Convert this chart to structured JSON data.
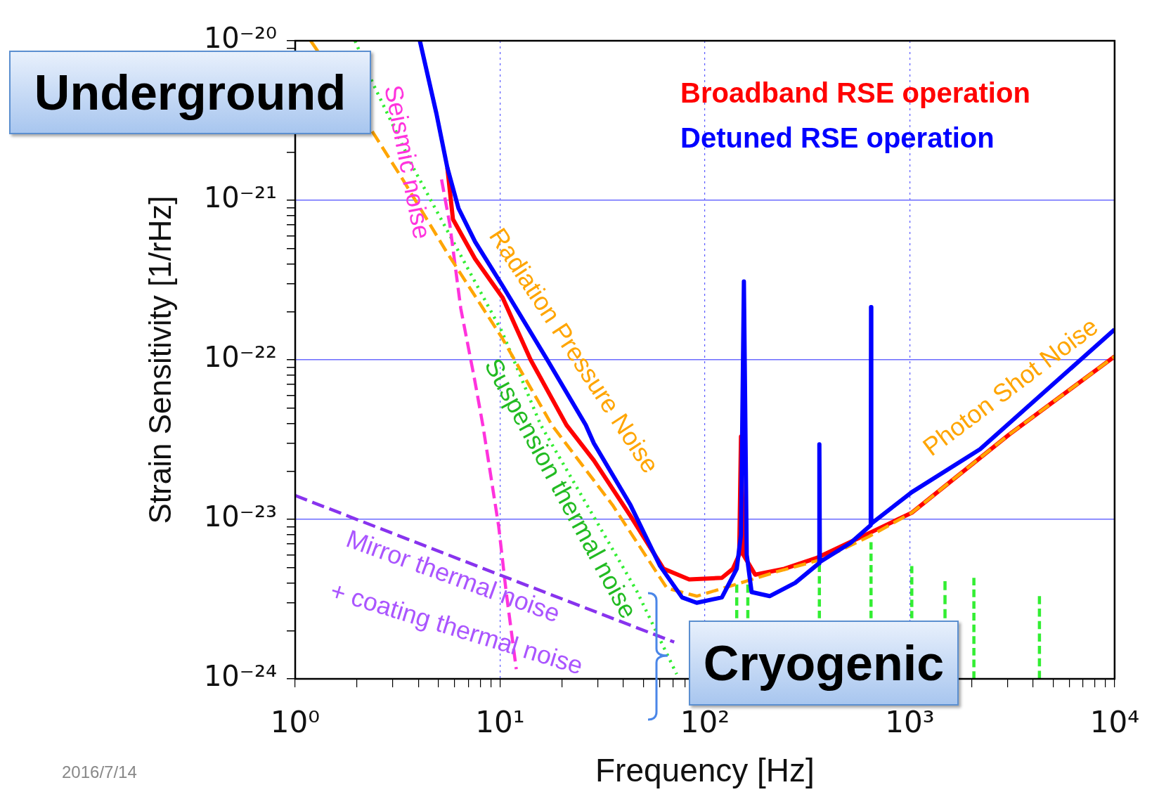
{
  "chart_data": {
    "type": "line",
    "xlabel": "Frequency [Hz]",
    "ylabel": "Strain Sensitivity [1/rHz]",
    "log": "xy",
    "grid": true,
    "legend": "top right",
    "marker": "none",
    "xlim": [
      1,
      10000
    ],
    "ylim": [
      1e-24,
      1e-20
    ],
    "xticks": [
      {
        "value": 1,
        "label": "10⁰"
      },
      {
        "value": 2,
        "label": null
      },
      {
        "value": 3,
        "label": null
      },
      {
        "value": 4,
        "label": null
      },
      {
        "value": 5,
        "label": null
      },
      {
        "value": 6,
        "label": null
      },
      {
        "value": 7,
        "label": null
      },
      {
        "value": 8,
        "label": null
      },
      {
        "value": 9,
        "label": null
      },
      {
        "value": 10,
        "label": "10¹"
      },
      {
        "value": 20,
        "label": null
      },
      {
        "value": 30,
        "label": null
      },
      {
        "value": 40,
        "label": null
      },
      {
        "value": 50,
        "label": null
      },
      {
        "value": 60,
        "label": null
      },
      {
        "value": 70,
        "label": null
      },
      {
        "value": 80,
        "label": null
      },
      {
        "value": 90,
        "label": null
      },
      {
        "value": 100,
        "label": "10²"
      },
      {
        "value": 200,
        "label": null
      },
      {
        "value": 300,
        "label": null
      },
      {
        "value": 400,
        "label": null
      },
      {
        "value": 500,
        "label": null
      },
      {
        "value": 600,
        "label": null
      },
      {
        "value": 700,
        "label": null
      },
      {
        "value": 800,
        "label": null
      },
      {
        "value": 900,
        "label": null
      },
      {
        "value": 1000,
        "label": "10³"
      },
      {
        "value": 2000,
        "label": null
      },
      {
        "value": 3000,
        "label": null
      },
      {
        "value": 4000,
        "label": null
      },
      {
        "value": 5000,
        "label": null
      },
      {
        "value": 6000,
        "label": null
      },
      {
        "value": 7000,
        "label": null
      },
      {
        "value": 8000,
        "label": null
      },
      {
        "value": 9000,
        "label": null
      },
      {
        "value": 10000,
        "label": "10⁴"
      }
    ],
    "yticks": [
      {
        "value": 1e-24,
        "label": "10⁻²⁴"
      },
      {
        "value": 2e-24,
        "label": null
      },
      {
        "value": 3e-24,
        "label": null
      },
      {
        "value": 4e-24,
        "label": null
      },
      {
        "value": 5e-24,
        "label": null
      },
      {
        "value": 6e-24,
        "label": null
      },
      {
        "value": 7e-24,
        "label": null
      },
      {
        "value": 8e-24,
        "label": null
      },
      {
        "value": 9e-24,
        "label": null
      },
      {
        "value": 1e-23,
        "label": "10⁻²³"
      },
      {
        "value": 2e-23,
        "label": null
      },
      {
        "value": 3e-23,
        "label": null
      },
      {
        "value": 4e-23,
        "label": null
      },
      {
        "value": 5e-23,
        "label": null
      },
      {
        "value": 6e-23,
        "label": null
      },
      {
        "value": 7e-23,
        "label": null
      },
      {
        "value": 8e-23,
        "label": null
      },
      {
        "value": 9e-23,
        "label": null
      },
      {
        "value": 1e-22,
        "label": "10⁻²²"
      },
      {
        "value": 2e-22,
        "label": null
      },
      {
        "value": 3e-22,
        "label": null
      },
      {
        "value": 4e-22,
        "label": null
      },
      {
        "value": 5e-22,
        "label": null
      },
      {
        "value": 6e-22,
        "label": null
      },
      {
        "value": 7e-22,
        "label": null
      },
      {
        "value": 8e-22,
        "label": null
      },
      {
        "value": 9e-22,
        "label": null
      },
      {
        "value": 1e-21,
        "label": "10⁻²¹"
      },
      {
        "value": 2e-21,
        "label": null
      },
      {
        "value": 3e-21,
        "label": null
      },
      {
        "value": 4e-21,
        "label": null
      },
      {
        "value": 5e-21,
        "label": null
      },
      {
        "value": 6e-21,
        "label": null
      },
      {
        "value": 7e-21,
        "label": null
      },
      {
        "value": 8e-21,
        "label": null
      },
      {
        "value": 9e-21,
        "label": null
      },
      {
        "value": 1e-20,
        "label": "10⁻²⁰"
      }
    ],
    "series": [
      {
        "color": "#33ee33",
        "line_style": "dashed",
        "x": [
          143,
          143
        ],
        "values": [
          2.4e-24,
          3.9e-24
        ]
      },
      {
        "color": "#33ee33",
        "line_style": "dashed",
        "x": [
          162,
          162
        ],
        "values": [
          2.4e-24,
          3.9e-24
        ]
      },
      {
        "color": "#33ee33",
        "line_style": "dashed",
        "x": [
          362,
          362
        ],
        "values": [
          2.4e-24,
          5.2e-24
        ]
      },
      {
        "color": "#33ee33",
        "line_style": "dashed",
        "x": [
          647,
          647
        ],
        "values": [
          2.4e-24,
          7.2e-24
        ]
      },
      {
        "color": "#33ee33",
        "line_style": "dashed",
        "x": [
          1023,
          1023
        ],
        "values": [
          2.4e-24,
          5.1e-24
        ]
      },
      {
        "color": "#33ee33",
        "line_style": "dashed",
        "x": [
          1486,
          1486
        ],
        "values": [
          2.4e-24,
          4.1e-24
        ]
      },
      {
        "color": "#33ee33",
        "line_style": "dashed",
        "x": [
          2056,
          2056
        ],
        "values": [
          1e-24,
          4.3e-24
        ]
      },
      {
        "color": "#33ee33",
        "line_style": "dashed",
        "x": [
          4295,
          4295
        ],
        "values": [
          1e-24,
          3.3e-24
        ]
      },
      {
        "color": "#33ee33",
        "line_style": "dotted",
        "x": [
          1.96,
          2.38,
          3.79,
          5.51,
          10.2,
          15.8,
          46.5,
          72.8
        ],
        "values": [
          1e-20,
          5.5e-21,
          1.58e-21,
          6.5e-22,
          1.51e-22,
          3.9e-23,
          3.55e-24,
          1.07e-24
        ]
      },
      {
        "color": "#ff33dd",
        "line_style": "dashed",
        "x": [
          5.18,
          5.68,
          6.43,
          7.5,
          8.24,
          9.84,
          10.7,
          12
        ],
        "values": [
          1.35e-21,
          7.1e-22,
          2.1e-22,
          7.6e-23,
          3.9e-23,
          9.1e-24,
          3.55e-24,
          1.15e-24
        ]
      },
      {
        "color": "#8833ee",
        "line_style": "dashed",
        "x": [
          1,
          9.9,
          70.8
        ],
        "values": [
          1.41e-23,
          4.5e-24,
          1.7e-24
        ]
      },
      {
        "name": "Broadband RSE operation",
        "color": "#ff0000",
        "line_style": "solid",
        "x": [
          5.53,
          5.89,
          7.55,
          10.3,
          14.1,
          21.1,
          28.7,
          43.3,
          62.8,
          83.8,
          121,
          137,
          147,
          150,
          154,
          176,
          244,
          354,
          647,
          1023,
          3055,
          10000
        ],
        "values": [
          1.6e-21,
          7.6e-22,
          4.3e-22,
          2.45e-22,
          1e-22,
          3.9e-23,
          2.34e-23,
          1.05e-23,
          4.9e-24,
          4.2e-24,
          4.3e-24,
          4.9e-24,
          6e-24,
          3.3e-23,
          6e-24,
          4.5e-24,
          4.9e-24,
          5.75e-24,
          8.3e-24,
          1.1e-23,
          3.4e-23,
          1.05e-22
        ]
      },
      {
        "color": "#ffa500",
        "line_style": "dashed",
        "x": [
          1.19,
          2.38,
          3.35,
          5.51,
          10.2,
          17.9,
          35.4,
          65.3,
          91.2,
          150,
          225,
          371,
          632,
          1023,
          3055,
          10000
        ],
        "values": [
          1e-20,
          2.7e-21,
          1.35e-21,
          4.7e-22,
          1.38e-22,
          3.9e-23,
          1.23e-23,
          3.7e-24,
          3.3e-24,
          4e-24,
          4.7e-24,
          5.6e-24,
          7.8e-24,
          1.1e-23,
          3.4e-23,
          1.05e-22
        ]
      },
      {
        "name": "Detuned RSE operation",
        "color": "#0000ff",
        "line_style": "solid",
        "x": [
          4.06,
          4.89,
          5.53,
          6.27,
          7.55,
          10.3,
          17,
          26.2,
          28.7,
          43.3,
          60.4,
          77.4,
          91.2,
          121,
          143,
          150,
          155,
          160,
          169,
          207,
          276,
          360,
          362,
          364,
          513,
          645,
          647,
          649,
          1023,
          2203,
          10000
        ],
        "values": [
          1e-20,
          3.5e-21,
          1.6e-21,
          8.9e-22,
          5.5e-22,
          2.9e-22,
          1e-22,
          3.9e-23,
          3e-23,
          1.23e-23,
          5.1e-24,
          3.24e-24,
          3e-24,
          3.24e-24,
          4.9e-24,
          8e-24,
          3.1e-22,
          6e-24,
          3.5e-24,
          3.3e-24,
          4e-24,
          5.3e-24,
          2.95e-23,
          5.4e-24,
          7.1e-24,
          9.2e-24,
          2.14e-22,
          9.4e-24,
          1.48e-23,
          2.75e-23,
          1.55e-22
        ]
      }
    ],
    "annotations": [
      "Underground",
      "Cryogenic",
      "2016/7/14",
      "Seismic noise",
      "Radiation Pressure Noise",
      "Suspension thermal noise",
      "Photon Shot Noise",
      "Mirror thermal noise",
      "+ coating thermal noise"
    ]
  }
}
